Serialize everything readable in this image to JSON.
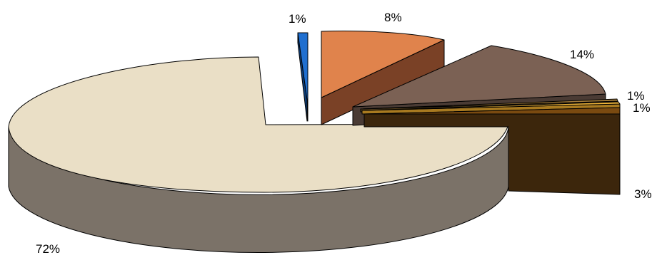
{
  "chart_data": {
    "type": "pie",
    "style": "3d-exploded",
    "title": "",
    "legend": "none",
    "slices": [
      {
        "label": "1%",
        "value": 1,
        "top_color": "#1f6fd0",
        "side_color": "#0e3f7a",
        "icon": ""
      },
      {
        "label": "8%",
        "value": 8,
        "top_color": "#e0834c",
        "side_color": "#7a4126"
      },
      {
        "label": "14%",
        "value": 14,
        "top_color": "#7b6154",
        "side_color": "#4a3b34"
      },
      {
        "label": "1%",
        "value": 1,
        "top_color": "#a07a3a",
        "side_color": "#5a4420"
      },
      {
        "label": "1%",
        "value": 1,
        "top_color": "#f2b73a",
        "side_color": "#a87a20"
      },
      {
        "label": "3%",
        "value": 3,
        "top_color": "#7a4a10",
        "side_color": "#3c260c"
      },
      {
        "label": "72%",
        "value": 72,
        "top_color": "#eadfc6",
        "side_color": "#7b7268"
      }
    ]
  }
}
